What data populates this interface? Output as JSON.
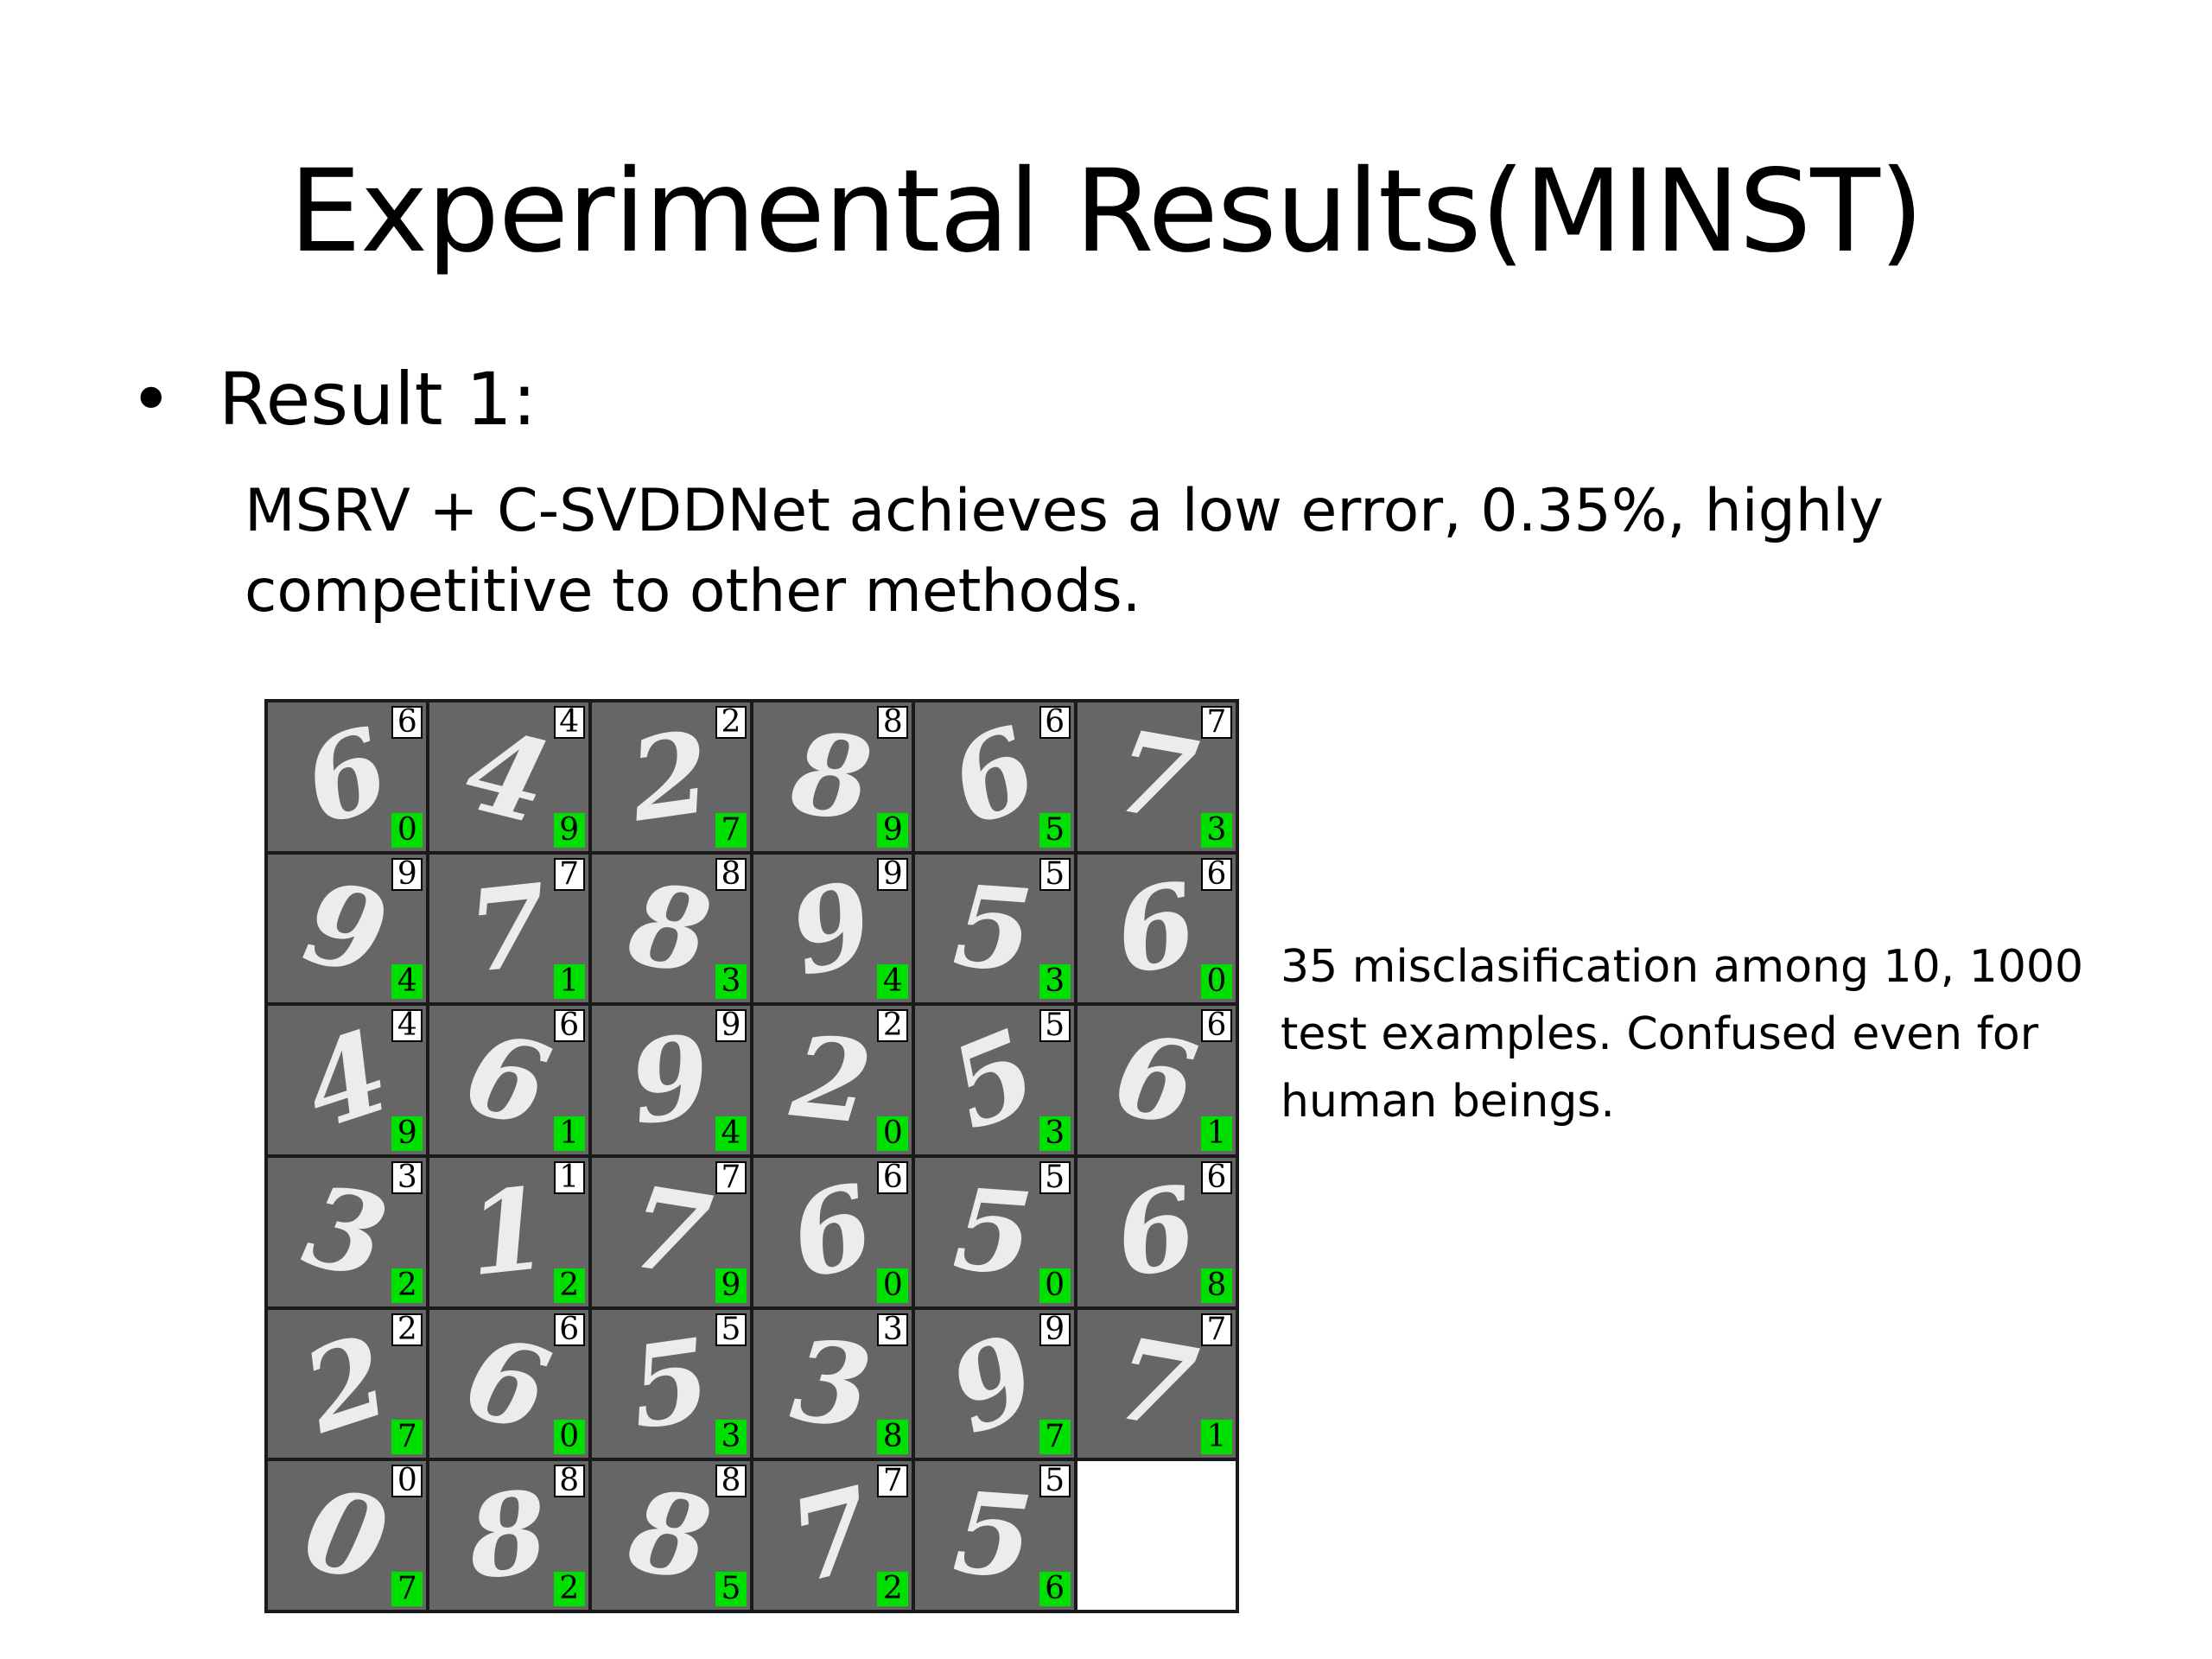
{
  "slide": {
    "title": "Experimental Results(MINST)",
    "bullet": {
      "symbol": "•",
      "label": "Result 1:"
    },
    "body_lines": [
      "MSRV + C-SVDDNet achieves a low error, 0.35%, highly",
      "competitive to other methods."
    ],
    "caption_lines": [
      "35 misclasification among 10, 1000",
      "test examples. Confused even for",
      "human beings."
    ]
  },
  "figure": {
    "colors": {
      "cell_background": "#666666",
      "digit_stroke": "#f4f4f4",
      "predicted_label_bg": "#00e000",
      "true_label_bg": "#ffffff"
    },
    "cells": [
      {
        "true": "6",
        "pred": "0"
      },
      {
        "true": "4",
        "pred": "9"
      },
      {
        "true": "2",
        "pred": "7"
      },
      {
        "true": "8",
        "pred": "9"
      },
      {
        "true": "6",
        "pred": "5"
      },
      {
        "true": "7",
        "pred": "3"
      },
      {
        "true": "9",
        "pred": "4"
      },
      {
        "true": "7",
        "pred": "1"
      },
      {
        "true": "8",
        "pred": "3"
      },
      {
        "true": "9",
        "pred": "4"
      },
      {
        "true": "5",
        "pred": "3"
      },
      {
        "true": "6",
        "pred": "0"
      },
      {
        "true": "4",
        "pred": "9"
      },
      {
        "true": "6",
        "pred": "1"
      },
      {
        "true": "9",
        "pred": "4"
      },
      {
        "true": "2",
        "pred": "0"
      },
      {
        "true": "5",
        "pred": "3"
      },
      {
        "true": "6",
        "pred": "1"
      },
      {
        "true": "3",
        "pred": "2"
      },
      {
        "true": "1",
        "pred": "2"
      },
      {
        "true": "7",
        "pred": "9"
      },
      {
        "true": "6",
        "pred": "0"
      },
      {
        "true": "5",
        "pred": "0"
      },
      {
        "true": "6",
        "pred": "8"
      },
      {
        "true": "2",
        "pred": "7"
      },
      {
        "true": "6",
        "pred": "0"
      },
      {
        "true": "5",
        "pred": "3"
      },
      {
        "true": "3",
        "pred": "8"
      },
      {
        "true": "9",
        "pred": "7"
      },
      {
        "true": "7",
        "pred": "1"
      },
      {
        "true": "0",
        "pred": "7"
      },
      {
        "true": "8",
        "pred": "2"
      },
      {
        "true": "8",
        "pred": "5"
      },
      {
        "true": "7",
        "pred": "2"
      },
      {
        "true": "5",
        "pred": "6"
      }
    ]
  }
}
